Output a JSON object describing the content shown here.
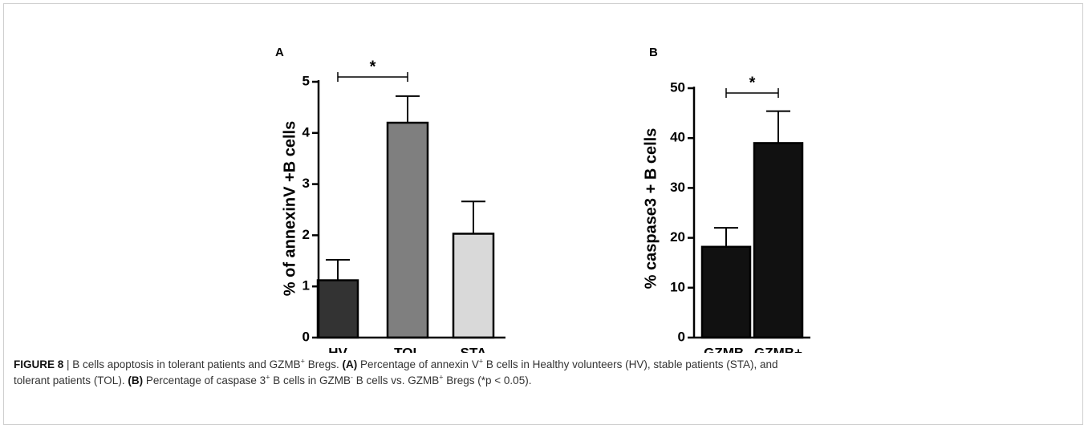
{
  "chart_data": [
    {
      "type": "bar",
      "panel": "A",
      "y_label": "% of annexinV +B cells",
      "categories": [
        "HV",
        "TOL",
        "STA"
      ],
      "values": [
        1.12,
        4.2,
        2.03
      ],
      "errors": [
        0.4,
        0.52,
        0.63
      ],
      "colors": [
        "#333333",
        "#7f7f7f",
        "#d9d9d9"
      ],
      "ylim": [
        0,
        5
      ],
      "yticks": [
        0,
        1,
        2,
        3,
        4,
        5
      ],
      "significance": {
        "label": "*",
        "from": "HV",
        "to": "TOL"
      }
    },
    {
      "type": "bar",
      "panel": "B",
      "y_label": "% caspase3 + B cells",
      "categories": [
        "GZMB-",
        "GZMB+"
      ],
      "values": [
        18.2,
        39
      ],
      "errors": [
        3.8,
        6.4
      ],
      "colors": [
        "#111111",
        "#111111"
      ],
      "ylim": [
        0,
        50
      ],
      "yticks": [
        0,
        10,
        20,
        30,
        40,
        50
      ],
      "significance": {
        "label": "*",
        "from": "GZMB-",
        "to": "GZMB+"
      }
    }
  ],
  "caption": [
    [
      {
        "text": "FIGURE 8",
        "style": "bold"
      },
      {
        "text": " | B cells apoptosis in tolerant patients and GZMB",
        "style": "normal"
      },
      {
        "text": "+",
        "style": "sup"
      },
      {
        "text": " Bregs. ",
        "style": "normal"
      },
      {
        "text": "(A)",
        "style": "bold"
      },
      {
        "text": " Percentage of annexin V",
        "style": "normal"
      },
      {
        "text": "+",
        "style": "sup"
      },
      {
        "text": " B cells in Healthy volunteers (HV), stable patients (STA), and",
        "style": "normal"
      }
    ],
    [
      {
        "text": "tolerant patients (TOL). ",
        "style": "normal"
      },
      {
        "text": "(B)",
        "style": "bold"
      },
      {
        "text": " Percentage of caspase 3",
        "style": "normal"
      },
      {
        "text": "+",
        "style": "sup"
      },
      {
        "text": " B cells in GZMB",
        "style": "normal"
      },
      {
        "text": "-",
        "style": "sup"
      },
      {
        "text": " B cells vs. GZMB",
        "style": "normal"
      },
      {
        "text": "+",
        "style": "sup"
      },
      {
        "text": " Bregs (*p < 0.05).",
        "style": "normal"
      }
    ]
  ]
}
